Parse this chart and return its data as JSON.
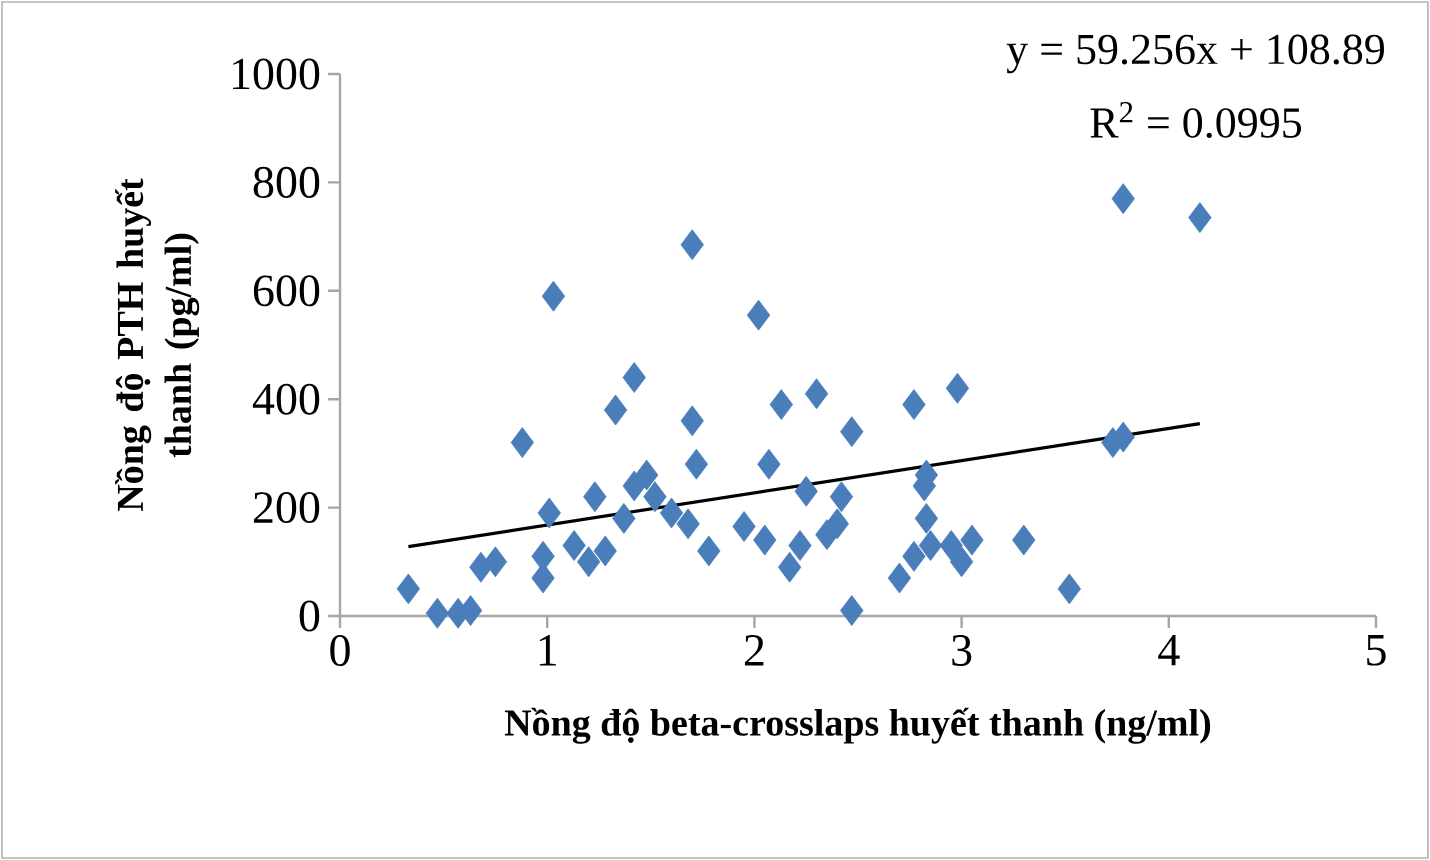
{
  "chart_data": {
    "type": "scatter",
    "xlabel": "Nồng độ beta-crosslaps huyết thanh (ng/ml)",
    "ylabel": "Nồng độ PTH huyết thanh (pg/ml)",
    "annotations": [
      "y = 59.256x  + 108.89",
      "R$^{2}$ = 0.0995"
    ],
    "xlim": [
      0,
      5
    ],
    "ylim": [
      0,
      1000
    ],
    "xticks": [
      0,
      1,
      2,
      3,
      4,
      5
    ],
    "yticks": [
      0,
      200,
      400,
      600,
      800,
      1000
    ],
    "marker": "diamond",
    "series": [
      {
        "color": "#4a7ebb",
        "x": [
          0.33,
          0.47,
          0.57,
          0.63,
          0.68,
          0.75,
          0.88,
          0.98,
          0.98,
          1.03,
          1.01,
          1.13,
          1.2,
          1.23,
          1.28,
          1.33,
          1.37,
          1.42,
          1.42,
          1.48,
          1.52,
          1.6,
          1.68,
          1.7,
          1.7,
          1.72,
          1.78,
          1.95,
          2.02,
          2.05,
          2.07,
          2.13,
          2.17,
          2.22,
          2.25,
          2.3,
          2.35,
          2.4,
          2.42,
          2.47,
          2.47,
          2.7,
          2.77,
          2.77,
          2.82,
          2.83,
          2.83,
          2.85,
          2.95,
          2.98,
          3.0,
          3.05,
          3.3,
          3.52,
          3.73,
          3.78,
          3.78,
          4.15
        ],
        "values": [
          50,
          5,
          5,
          10,
          90,
          100,
          320,
          70,
          110,
          590,
          190,
          130,
          100,
          220,
          120,
          380,
          180,
          240,
          440,
          260,
          220,
          190,
          170,
          360,
          685,
          280,
          120,
          165,
          555,
          140,
          280,
          390,
          90,
          130,
          230,
          410,
          150,
          170,
          220,
          10,
          340,
          70,
          110,
          390,
          240,
          180,
          260,
          130,
          130,
          420,
          100,
          140,
          140,
          50,
          320,
          330,
          770,
          735
        ]
      },
      {
        "type": "line",
        "color": "#000000",
        "marker": "none",
        "x": [
          0.33,
          4.15
        ],
        "values": [
          128,
          355
        ]
      }
    ]
  }
}
